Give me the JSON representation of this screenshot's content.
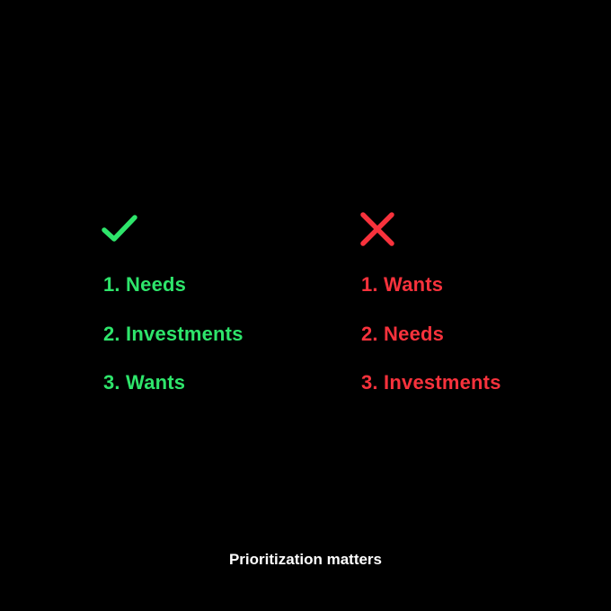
{
  "colors": {
    "background": "#000000",
    "good": "#2EE56B",
    "bad": "#F8323C",
    "caption": "#FFFFFF"
  },
  "good_column": {
    "icon": "check-icon",
    "items": [
      "1. Needs",
      "2. Investments",
      "3. Wants"
    ]
  },
  "bad_column": {
    "icon": "cross-icon",
    "items": [
      "1. Wants",
      "2. Needs",
      "3. Investments"
    ]
  },
  "caption": "Prioritization matters"
}
